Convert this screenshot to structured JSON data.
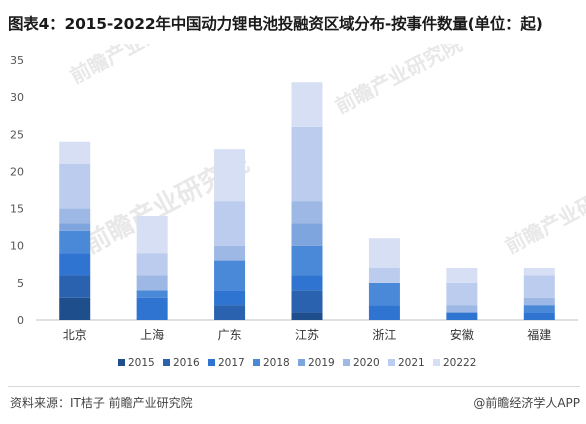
{
  "title": "图表4：2015-2022年中国动力锂电池投融资区域分布-按事件数量(单位：起)",
  "footer": {
    "source": "资料来源：IT桔子 前瞻产业研究院",
    "brand": "@前瞻经济学人APP"
  },
  "watermark": {
    "text": "前瞻产业研究院",
    "subtext": "前瞻产业研究院"
  },
  "colors": {
    "series": [
      "#1f4e8c",
      "#2a62b0",
      "#2f74d0",
      "#4a88d8",
      "#7ea5dd",
      "#9db8e4",
      "#bcccee",
      "#d6dff4"
    ]
  },
  "chart_data": {
    "type": "bar",
    "stacked": true,
    "categories": [
      "北京",
      "上海",
      "广东",
      "江苏",
      "浙江",
      "安徽",
      "福建"
    ],
    "ylim": [
      0,
      35
    ],
    "yticks": [
      0,
      5,
      10,
      15,
      20,
      25,
      30,
      35
    ],
    "grid": false,
    "legend_position": "bottom",
    "series": [
      {
        "name": "2015",
        "values": [
          3,
          0,
          0,
          1,
          0,
          0,
          0
        ]
      },
      {
        "name": "2016",
        "values": [
          3,
          0,
          2,
          3,
          0,
          0,
          0
        ]
      },
      {
        "name": "2017",
        "values": [
          3,
          3,
          2,
          2,
          2,
          1,
          1
        ]
      },
      {
        "name": "2018",
        "values": [
          3,
          1,
          4,
          4,
          3,
          0,
          1
        ]
      },
      {
        "name": "2019",
        "values": [
          1,
          0,
          0,
          3,
          0,
          0,
          0
        ]
      },
      {
        "name": "2020",
        "values": [
          2,
          2,
          2,
          3,
          0,
          1,
          1
        ]
      },
      {
        "name": "2021",
        "values": [
          6,
          3,
          6,
          10,
          2,
          3,
          3
        ]
      },
      {
        "name": "20222",
        "values": [
          3,
          5,
          7,
          6,
          4,
          2,
          1
        ]
      }
    ]
  }
}
